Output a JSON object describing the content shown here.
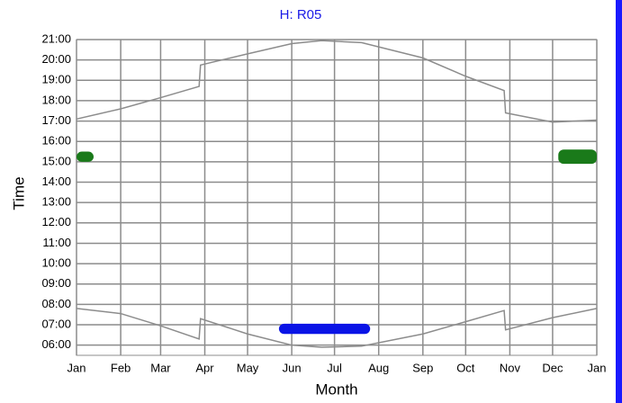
{
  "chart_data": {
    "type": "line",
    "title": "H: R05",
    "xlabel": "Month",
    "ylabel": "Time",
    "grid": true,
    "xlim": [
      0,
      365
    ],
    "xticks": [
      {
        "value": 0,
        "label": "Jan"
      },
      {
        "value": 31,
        "label": "Feb"
      },
      {
        "value": 59,
        "label": "Mar"
      },
      {
        "value": 90,
        "label": "Apr"
      },
      {
        "value": 120,
        "label": "May"
      },
      {
        "value": 151,
        "label": "Jun"
      },
      {
        "value": 181,
        "label": "Jul"
      },
      {
        "value": 212,
        "label": "Aug"
      },
      {
        "value": 243,
        "label": "Sep"
      },
      {
        "value": 273,
        "label": "Oct"
      },
      {
        "value": 304,
        "label": "Nov"
      },
      {
        "value": 334,
        "label": "Dec"
      },
      {
        "value": 365,
        "label": "Jan"
      }
    ],
    "ylim": [
      5.5,
      21
    ],
    "yticks": [
      {
        "value": 6,
        "label": "06:00"
      },
      {
        "value": 7,
        "label": "07:00"
      },
      {
        "value": 8,
        "label": "08:00"
      },
      {
        "value": 9,
        "label": "09:00"
      },
      {
        "value": 10,
        "label": "10:00"
      },
      {
        "value": 11,
        "label": "11:00"
      },
      {
        "value": 12,
        "label": "12:00"
      },
      {
        "value": 13,
        "label": "13:00"
      },
      {
        "value": 14,
        "label": "14:00"
      },
      {
        "value": 15,
        "label": "15:00"
      },
      {
        "value": 16,
        "label": "16:00"
      },
      {
        "value": 17,
        "label": "17:00"
      },
      {
        "value": 18,
        "label": "18:00"
      },
      {
        "value": 19,
        "label": "19:00"
      },
      {
        "value": 20,
        "label": "20:00"
      },
      {
        "value": 21,
        "label": "21:00"
      }
    ],
    "x": [
      0,
      31,
      59,
      86,
      87,
      120,
      151,
      172,
      200,
      243,
      273,
      300,
      301,
      334,
      365
    ],
    "series": [
      {
        "color": "#8c8c8c",
        "values": [
          17.1,
          17.6,
          18.15,
          18.7,
          19.75,
          20.3,
          20.8,
          20.95,
          20.85,
          20.1,
          19.2,
          18.5,
          17.4,
          16.95,
          17.05
        ]
      },
      {
        "color": "#8c8c8c",
        "values": [
          7.8,
          7.55,
          6.95,
          6.3,
          7.3,
          6.55,
          6.0,
          5.9,
          5.95,
          6.55,
          7.15,
          7.7,
          6.75,
          7.35,
          7.8
        ]
      }
    ],
    "shading": [
      {
        "color": "#1a7a1a",
        "x": [
          0,
          12
        ],
        "y": [
          15.0,
          15.5
        ]
      },
      {
        "color": "#1a7a1a",
        "x": [
          338,
          365
        ],
        "y": [
          14.9,
          15.6
        ]
      },
      {
        "color": "#0a14e6",
        "x": [
          142,
          206
        ],
        "y": [
          6.55,
          7.05
        ]
      }
    ]
  }
}
